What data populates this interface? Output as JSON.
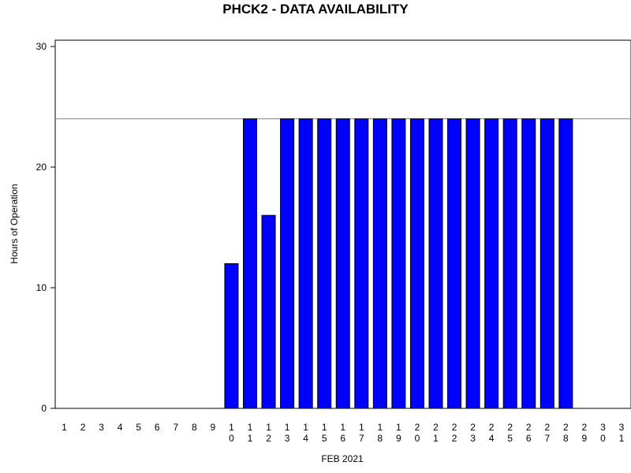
{
  "chart_data": {
    "type": "bar",
    "title": "PHCK2 - DATA AVAILABILITY",
    "xlabel": "FEB 2021",
    "ylabel": "Hours of Operation",
    "ylim": [
      0,
      30
    ],
    "yticks": [
      0,
      10,
      20,
      30
    ],
    "reference_line": 24,
    "grid": false,
    "categories": [
      "1",
      "2",
      "3",
      "4",
      "5",
      "6",
      "7",
      "8",
      "9",
      "10",
      "11",
      "12",
      "13",
      "14",
      "15",
      "16",
      "17",
      "18",
      "19",
      "20",
      "21",
      "22",
      "23",
      "24",
      "25",
      "26",
      "27",
      "28",
      "29",
      "30",
      "31"
    ],
    "values": [
      0,
      0,
      0,
      0,
      0,
      0,
      0,
      0,
      0,
      12,
      24,
      16,
      24,
      24,
      24,
      24,
      24,
      24,
      24,
      24,
      24,
      24,
      24,
      24,
      24,
      24,
      24,
      24,
      0,
      0,
      0
    ],
    "colors": {
      "bar_fill": "#0000ff",
      "bar_stroke": "#000000",
      "reference_line": "#808080"
    }
  }
}
